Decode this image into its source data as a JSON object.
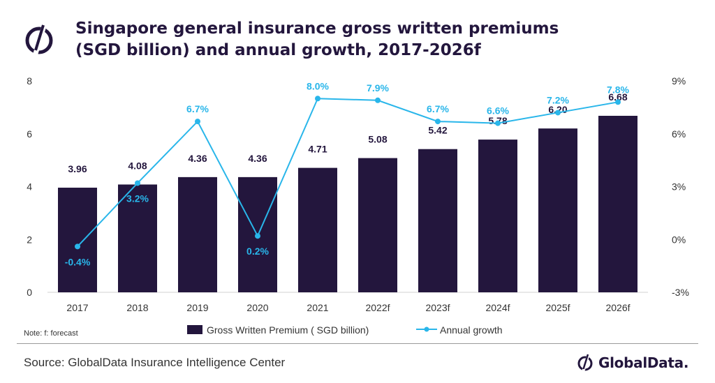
{
  "header": {
    "title_line1": "Singapore general insurance gross written premiums",
    "title_line2": "(SGD billion) and annual growth, 2017-2026f"
  },
  "footer": {
    "note": "Note: f: forecast",
    "source": "Source: GlobalData Insurance Intelligence Center",
    "brand": "GlobalData."
  },
  "icons": {
    "top_logo": "globaldata-logo-icon",
    "brand_mark": "globaldata-mark-icon"
  },
  "colors": {
    "bar": "#23163d",
    "line": "#29b6ea",
    "title": "#23163d"
  },
  "chart_data": {
    "type": "bar",
    "categories": [
      "2017",
      "2018",
      "2019",
      "2020",
      "2021",
      "2022f",
      "2023f",
      "2024f",
      "2025f",
      "2026f"
    ],
    "series": [
      {
        "name": "Gross Written Premium ( SGD billion)",
        "type": "bar",
        "axis": "left",
        "values": [
          3.96,
          4.08,
          4.36,
          4.36,
          4.71,
          5.08,
          5.42,
          5.78,
          6.2,
          6.68
        ],
        "labels": [
          "3.96",
          "4.08",
          "4.36",
          "4.36",
          "4.71",
          "5.08",
          "5.42",
          "5.78",
          "6.20",
          "6.68"
        ]
      },
      {
        "name": "Annual growth",
        "type": "line",
        "axis": "right",
        "values": [
          -0.4,
          3.2,
          6.7,
          0.2,
          8.0,
          7.9,
          6.7,
          6.6,
          7.2,
          7.8
        ],
        "labels": [
          "-0.4%",
          "3.2%",
          "6.7%",
          "0.2%",
          "8.0%",
          "7.9%",
          "6.7%",
          "6.6%",
          "7.2%",
          "7.8%"
        ]
      }
    ],
    "y_left": {
      "min": 0,
      "max": 8,
      "ticks": [
        0,
        2,
        4,
        6,
        8
      ],
      "tick_labels": [
        "0",
        "2",
        "4",
        "6",
        "8"
      ]
    },
    "y_right": {
      "min": -3,
      "max": 9,
      "ticks": [
        -3,
        0,
        3,
        6,
        9
      ],
      "tick_labels": [
        "-3%",
        "0%",
        "3%",
        "6%",
        "9%"
      ]
    },
    "grid": false,
    "legend_position": "bottom"
  }
}
